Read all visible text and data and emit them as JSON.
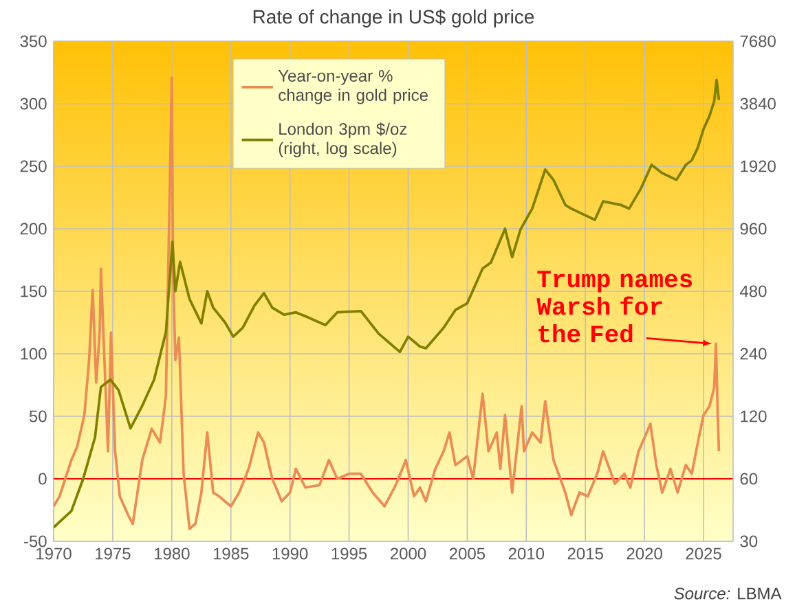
{
  "chart_data": {
    "type": "line",
    "title": "Rate of change in US$ gold price",
    "xlim": [
      1970,
      2027.5
    ],
    "xticks": [
      1970,
      1975,
      1980,
      1985,
      1990,
      1995,
      2000,
      2005,
      2010,
      2015,
      2020,
      2025
    ],
    "ylim": [
      -50,
      350
    ],
    "yticks": [
      -50,
      0,
      50,
      100,
      150,
      200,
      250,
      300,
      350
    ],
    "y2lim": [
      30,
      7680
    ],
    "y2ticks": [
      30,
      60,
      120,
      240,
      480,
      960,
      1920,
      3840,
      7680
    ],
    "log": "y2",
    "grid": true,
    "legend": "top",
    "ref_lines": [
      {
        "axis": "y",
        "value": 0,
        "color": "#ff0000"
      }
    ],
    "series": [
      {
        "name": "Year-on-year % change in gold price",
        "color": "#ea8c55",
        "x": [
          1970,
          1970.5,
          1971.5,
          1972,
          1972.6,
          1973,
          1973.3,
          1973.6,
          1973.9,
          1974,
          1974.3,
          1974.6,
          1974.85,
          1975.2,
          1975.6,
          1976.3,
          1976.7,
          1977.5,
          1978.3,
          1979,
          1979.5,
          1980,
          1980.1,
          1980.3,
          1980.6,
          1981,
          1981.5,
          1982,
          1982.5,
          1983,
          1983.5,
          1984,
          1985,
          1985.7,
          1986.5,
          1987.3,
          1987.8,
          1988.5,
          1989.3,
          1990,
          1990.5,
          1991.3,
          1992.5,
          1993.3,
          1994,
          1995,
          1996,
          1997,
          1998,
          1999,
          1999.8,
          2000.5,
          2001,
          2001.5,
          2002.3,
          2003,
          2003.5,
          2004,
          2005,
          2005.5,
          2006.3,
          2006.8,
          2007.5,
          2007.8,
          2008.2,
          2008.8,
          2009.6,
          2009.8,
          2010.5,
          2011.2,
          2011.6,
          2012.3,
          2013.3,
          2013.8,
          2014.5,
          2015.2,
          2016,
          2016.5,
          2017.5,
          2018.3,
          2018.8,
          2019.5,
          2020.5,
          2021,
          2021.5,
          2022.2,
          2022.8,
          2023.5,
          2024,
          2024.6,
          2025,
          2025.5,
          2025.9,
          2026.05,
          2026.2,
          2026.3
        ],
        "values": [
          -22,
          -14,
          15,
          26,
          51,
          95,
          151,
          77,
          117,
          168,
          95,
          22,
          117,
          22,
          -14,
          -29,
          -36,
          15,
          40,
          29,
          66,
          321,
          168,
          95,
          113,
          4,
          -40,
          -36,
          -11,
          37,
          -11,
          -14,
          -22,
          -11,
          8,
          37,
          29,
          0,
          -18,
          -11,
          8,
          -7,
          -5,
          15,
          0,
          4,
          4,
          -11,
          -22,
          -4,
          15,
          -14,
          -7,
          -18,
          8,
          22,
          37,
          11,
          18,
          0,
          68,
          22,
          37,
          8,
          51,
          -11,
          58,
          22,
          37,
          29,
          62,
          15,
          -11,
          -29,
          -11,
          -14,
          4,
          22,
          -4,
          4,
          -7,
          22,
          44,
          11,
          -11,
          8,
          -11,
          11,
          4,
          33,
          51,
          58,
          73,
          108,
          51,
          22
        ]
      },
      {
        "name": "London 3pm $/oz (right, log scale)",
        "color": "#808000",
        "axis": "y2",
        "x": [
          1970,
          1971.5,
          1972.5,
          1973.5,
          1974,
          1974.8,
          1975.5,
          1976.5,
          1977.5,
          1978.5,
          1979.5,
          1980.05,
          1980.3,
          1980.7,
          1981.5,
          1982.5,
          1983,
          1983.5,
          1984.5,
          1985.2,
          1986,
          1987,
          1987.8,
          1988.5,
          1989.5,
          1990.5,
          1991.5,
          1993,
          1994,
          1996,
          1997.5,
          1999.3,
          2000,
          2001,
          2001.5,
          2003,
          2004,
          2005,
          2006.3,
          2007,
          2008.2,
          2008.8,
          2009.5,
          2010.5,
          2011.6,
          2012.3,
          2013.3,
          2013.8,
          2015.8,
          2016.5,
          2018,
          2018.7,
          2019.7,
          2020.6,
          2021.5,
          2022.7,
          2023.5,
          2024,
          2024.5,
          2025,
          2025.5,
          2025.9,
          2026.1,
          2026.3
        ],
        "values": [
          35,
          42,
          60,
          95,
          166,
          180,
          160,
          105,
          135,
          180,
          305,
          830,
          480,
          665,
          440,
          336,
          480,
          400,
          340,
          290,
          320,
          410,
          470,
          400,
          370,
          380,
          360,
          330,
          380,
          385,
          300,
          245,
          290,
          260,
          255,
          320,
          390,
          420,
          617,
          660,
          960,
          700,
          950,
          1200,
          1850,
          1650,
          1250,
          1200,
          1060,
          1300,
          1250,
          1200,
          1500,
          1950,
          1780,
          1650,
          1950,
          2050,
          2350,
          2900,
          3350,
          3950,
          5000,
          4000
        ]
      }
    ],
    "annotations": [
      {
        "text": "Trump names Warsh for the Fed",
        "x": 2026.05,
        "y": 108
      },
      "*Source:* LBMA"
    ]
  }
}
